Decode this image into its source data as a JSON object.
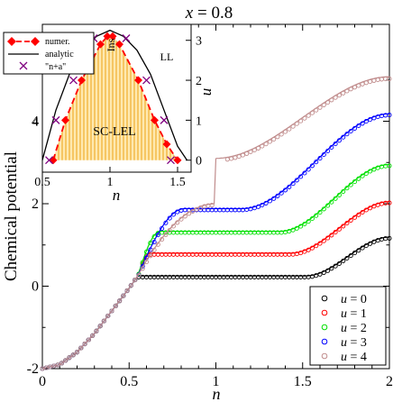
{
  "chart_data": [
    {
      "type": "scatter",
      "title": "x = 0.8",
      "title_parts": {
        "var": "x",
        "rest": " = 0.8"
      },
      "xlabel": "n",
      "ylabel": "Chemical potential",
      "xlim": [
        0,
        2
      ],
      "ylim": [
        -2,
        6.35
      ],
      "xticks": [
        0,
        0.5,
        1,
        1.5,
        2
      ],
      "xtick_labels": [
        "0",
        "0.5",
        "1",
        "1.5",
        "2"
      ],
      "yticks": [
        -2,
        0,
        2,
        4
      ],
      "ytick_labels": [
        "-2",
        "0",
        "2",
        "4"
      ],
      "grid": false,
      "legend_position": "bottom-right",
      "legend_var": "u",
      "series": [
        {
          "name": "= 0",
          "u": 0,
          "color": "#000000",
          "plateau": 0.25,
          "gap_start": 0.57,
          "gap_end": 1.52,
          "top_end": 1.19
        },
        {
          "name": "= 1",
          "u": 1,
          "color": "#ff0000",
          "plateau": 0.8,
          "gap_start": 0.62,
          "gap_end": 1.43,
          "top_end": 2.05
        },
        {
          "name": "= 2",
          "u": 2,
          "color": "#00e000",
          "plateau": 1.33,
          "gap_start": 0.68,
          "gap_end": 1.37,
          "top_end": 2.95
        },
        {
          "name": "= 3",
          "u": 3,
          "color": "#0000ff",
          "plateau": 1.88,
          "gap_start": 0.82,
          "gap_end": 1.15,
          "top_end": 4.18
        },
        {
          "name": "= 4",
          "u": 4,
          "color": "#c08c8c",
          "plateau": 0,
          "gap_start": 1,
          "gap_end": 1,
          "top_end": 5.08
        }
      ],
      "common_lower_branch": {
        "n": [
          0,
          0.1,
          0.2,
          0.3,
          0.4,
          0.5,
          0.55
        ],
        "mu": [
          -2,
          -1.9,
          -1.6,
          -1.15,
          -0.6,
          -0.05,
          0.25
        ]
      }
    },
    {
      "type": "area",
      "inset": true,
      "xlabel": "n",
      "ylabel": "u",
      "xlim": [
        0.5,
        1.6
      ],
      "ylim": [
        -0.3,
        3.4
      ],
      "xticks": [
        0.5,
        1,
        1.5
      ],
      "xtick_labels": [
        "0.5",
        "1",
        "1.5"
      ],
      "yticks": [
        0,
        1,
        2,
        3
      ],
      "ytick_labels": [
        "0",
        "1",
        "2",
        "3"
      ],
      "left_ticks": [
        4
      ],
      "left_tick_labels": [
        "4"
      ],
      "region_labels": {
        "phase": "SC-LEL",
        "top": "Ins",
        "right": "LL"
      },
      "legend_position": "top-left",
      "series": [
        {
          "name": "numer.",
          "color": "#ff0000",
          "n": [
            0.58,
            0.67,
            0.79,
            0.93,
            0.98,
            1.02,
            1.07,
            1.21,
            1.33,
            1.42,
            1.5
          ],
          "u": [
            0,
            1,
            2,
            2.9,
            3.1,
            3.1,
            2.9,
            2,
            1,
            0.4,
            0
          ]
        },
        {
          "name": "analytic",
          "color": "#000000",
          "n": [
            0.5,
            0.6,
            0.7,
            0.8,
            0.9,
            1.0,
            1.1,
            1.2,
            1.3,
            1.4,
            1.5,
            1.57
          ],
          "u": [
            0,
            1.25,
            2.15,
            2.75,
            3.1,
            3.25,
            3.1,
            2.75,
            2.15,
            1.25,
            0.35,
            0
          ]
        },
        {
          "name": "\"n+a\"",
          "color": "#800080",
          "n": [
            0.55,
            0.6,
            0.73,
            0.88,
            1.12,
            1.27,
            1.4,
            1.45
          ],
          "u": [
            0,
            1,
            2,
            3.05,
            3.05,
            2,
            1,
            0
          ]
        }
      ]
    }
  ]
}
